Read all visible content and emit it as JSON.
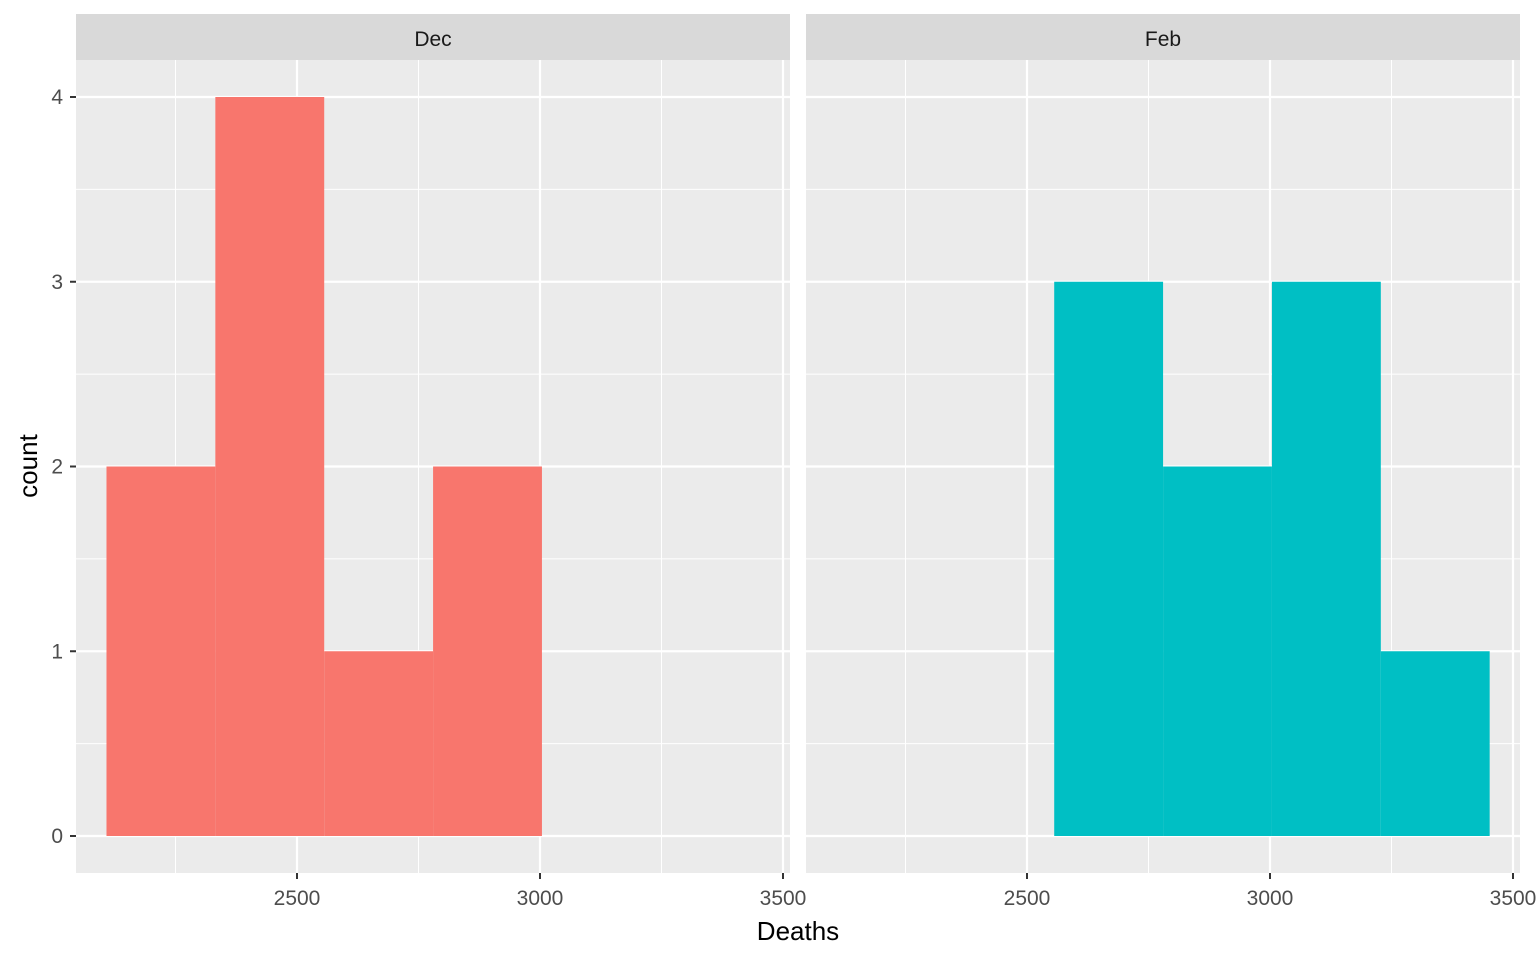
{
  "chart_data": {
    "type": "bar",
    "xlabel": "Deaths",
    "ylabel": "count",
    "xlim": [
      2100,
      3500
    ],
    "ylim": [
      0,
      4
    ],
    "x_ticks": [
      "2500",
      "3000",
      "3500"
    ],
    "y_ticks": [
      "0",
      "1",
      "2",
      "3",
      "4"
    ],
    "grid": true,
    "legend": "none",
    "panels": [
      {
        "name": "Dec",
        "color": "#F8766D",
        "bins": [
          {
            "x_start": 2108,
            "x_end": 2332,
            "count": 2
          },
          {
            "x_start": 2332,
            "x_end": 2556,
            "count": 4
          },
          {
            "x_start": 2556,
            "x_end": 2780,
            "count": 1
          },
          {
            "x_start": 2780,
            "x_end": 3004,
            "count": 2
          }
        ]
      },
      {
        "name": "Feb",
        "color": "#00BFC4",
        "bins": [
          {
            "x_start": 2556,
            "x_end": 2780,
            "count": 3
          },
          {
            "x_start": 2780,
            "x_end": 3004,
            "count": 2
          },
          {
            "x_start": 3004,
            "x_end": 3228,
            "count": 3
          },
          {
            "x_start": 3228,
            "x_end": 3452,
            "count": 1
          }
        ]
      }
    ]
  }
}
